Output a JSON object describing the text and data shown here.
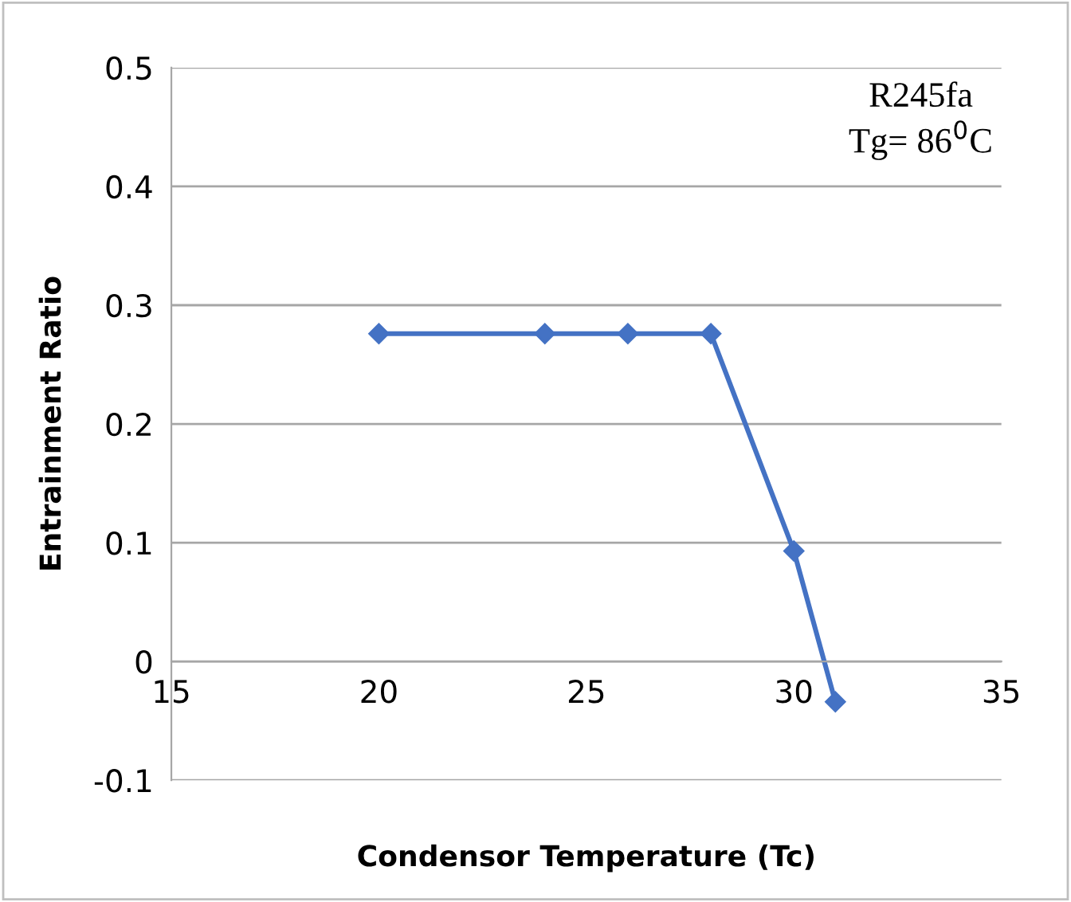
{
  "chart_data": {
    "type": "line",
    "xlabel": "Condensor Temperature (Tc)",
    "ylabel": "Entrainment Ratio",
    "x": [
      20,
      24,
      26,
      28,
      30,
      31
    ],
    "series": [
      {
        "color": "#4472c4",
        "values": [
          0.276,
          0.276,
          0.276,
          0.276,
          0.093,
          -0.034
        ]
      }
    ],
    "xlim": [
      15,
      35
    ],
    "xticks": [
      15,
      20,
      25,
      30,
      35
    ],
    "ylim": [
      -0.1,
      0.5
    ],
    "yticks": [
      -0.1,
      0,
      0.1,
      0.2,
      0.3,
      0.4,
      0.5
    ],
    "grid": "y",
    "marker": "diamond",
    "line_style": "solid",
    "annotations": [
      "R245fa\nTg= 86$^{0}$C"
    ]
  }
}
